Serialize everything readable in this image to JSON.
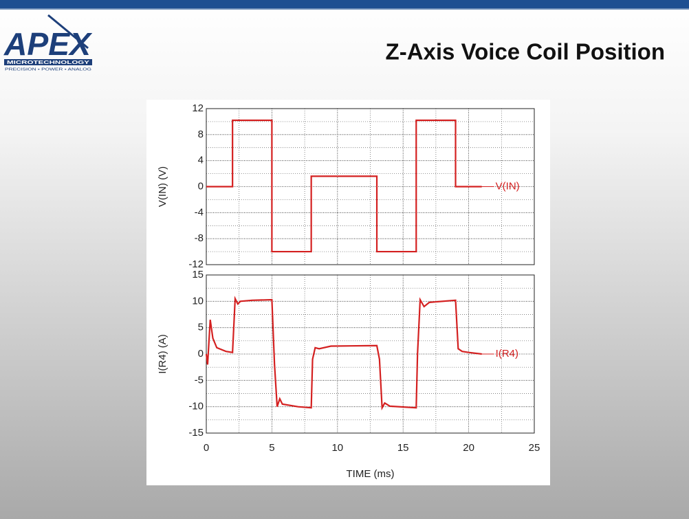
{
  "slide": {
    "title": "Z-Axis Voice Coil Position"
  },
  "logo": {
    "name": "APEX",
    "line1": "MICROTECHNOLOGY",
    "line2": "PRECISION • POWER • ANALOG"
  },
  "chart_data": [
    {
      "type": "line",
      "ylabel": "V(IN)  (V)",
      "xlim": [
        0,
        25
      ],
      "xticks": [
        0,
        5,
        10,
        15,
        20,
        25
      ],
      "minor_xticks": [
        2.5,
        7.5,
        12.5,
        17.5,
        22.5
      ],
      "ylim": [
        -12,
        12
      ],
      "yticks": [
        -12,
        -8,
        -4,
        0,
        4,
        8,
        12
      ],
      "minor_yticks": [
        -10,
        -6,
        -2,
        2,
        6,
        10
      ],
      "grid": true,
      "series": [
        {
          "name": "V(IN)",
          "color": "#d42020",
          "x": [
            0,
            2,
            2,
            5,
            5,
            8,
            8,
            13,
            13,
            16,
            16,
            19,
            19,
            21
          ],
          "values": [
            0,
            0,
            10.2,
            10.2,
            -10,
            -10,
            1.6,
            1.6,
            -10,
            -10,
            10.2,
            10.2,
            0,
            0
          ]
        }
      ]
    },
    {
      "type": "line",
      "ylabel": "I(R4)  (A)",
      "xlabel": "TIME  (ms)",
      "xlim": [
        0,
        25
      ],
      "xticks": [
        0,
        5,
        10,
        15,
        20,
        25
      ],
      "minor_xticks": [
        2.5,
        7.5,
        12.5,
        17.5,
        22.5
      ],
      "ylim": [
        -15,
        15
      ],
      "yticks": [
        -15,
        -10,
        -5,
        0,
        5,
        10,
        15
      ],
      "minor_yticks": [
        -12.5,
        -7.5,
        -2.5,
        2.5,
        7.5,
        12.5
      ],
      "grid": true,
      "series": [
        {
          "name": "I(R4)",
          "color": "#d42020",
          "x": [
            0,
            0.1,
            0.3,
            0.5,
            0.8,
            1.5,
            2,
            2.2,
            2.4,
            2.6,
            3.5,
            5,
            5.2,
            5.4,
            5.6,
            5.8,
            7,
            8,
            8.1,
            8.3,
            8.6,
            9.5,
            13,
            13.2,
            13.4,
            13.6,
            14,
            16,
            16.1,
            16.3,
            16.6,
            17,
            19,
            19.2,
            19.5,
            20,
            21
          ],
          "values": [
            0,
            -2,
            6.5,
            3,
            1.2,
            0.5,
            0.3,
            10.5,
            9.5,
            10,
            10.2,
            10.3,
            -2,
            -10,
            -8.5,
            -9.5,
            -10,
            -10.2,
            -1,
            1.2,
            1,
            1.5,
            1.6,
            -1,
            -10.2,
            -9.3,
            -9.9,
            -10.2,
            0,
            10.3,
            9,
            9.8,
            10.2,
            1,
            0.5,
            0.3,
            0
          ]
        }
      ]
    }
  ]
}
